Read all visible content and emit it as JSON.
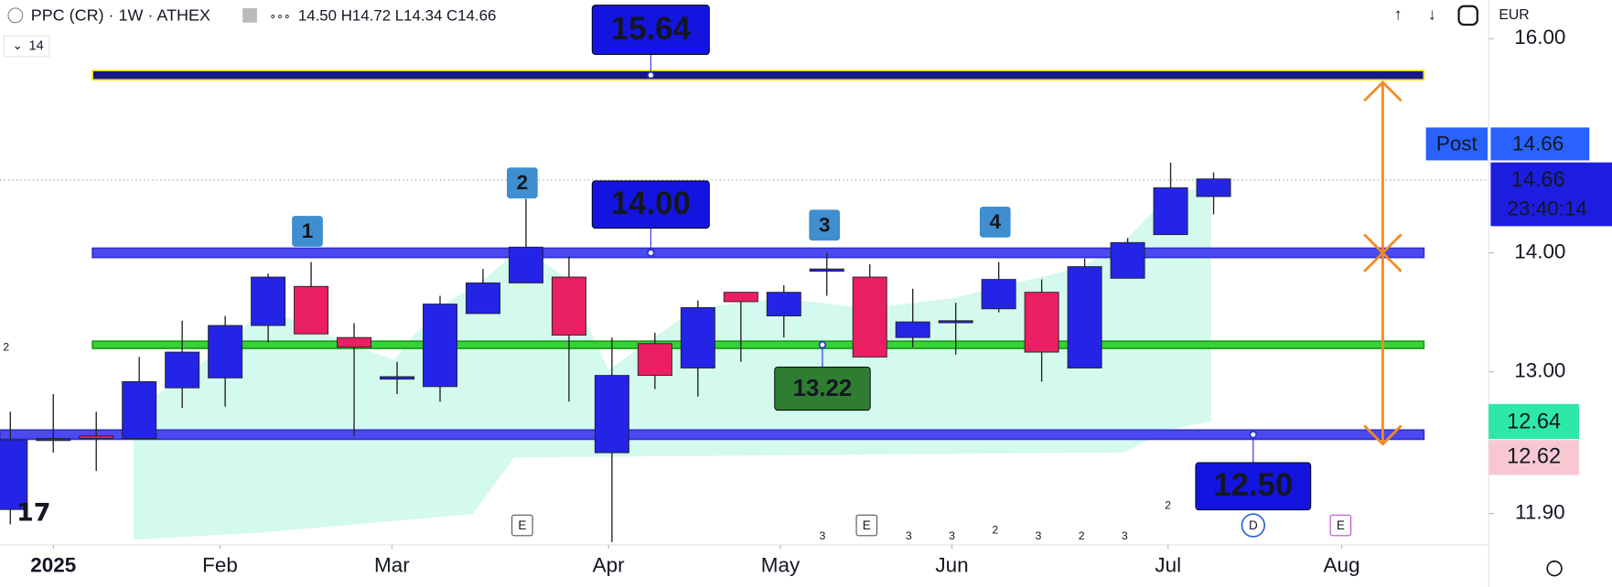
{
  "header": {
    "symbol": "PPC (CR) · 1W · ATHEX",
    "ohlc": "14.50 H14.72 L14.34 C14.66",
    "indicator": "14",
    "currency": "EUR"
  },
  "chart_data": {
    "type": "candlestick",
    "ylog": true,
    "ylim": [
      11.67,
      16.39
    ],
    "xlim": [
      -0.24,
      34.4
    ],
    "yticks": [
      {
        "value": 16,
        "label": "16.00"
      },
      {
        "value": 14,
        "label": "14.00"
      },
      {
        "value": 13,
        "label": "13.00"
      },
      {
        "value": 11.9,
        "label": "11.90"
      }
    ],
    "xticks": [
      {
        "value": 1,
        "label": "2025"
      },
      {
        "value": 4.88,
        "label": "Feb"
      },
      {
        "value": 8.88,
        "label": "Mar"
      },
      {
        "value": 13.92,
        "label": "Apr"
      },
      {
        "value": 17.92,
        "label": "May"
      },
      {
        "value": 21.91,
        "label": "Jun"
      },
      {
        "value": 26.94,
        "label": "Jul"
      },
      {
        "value": 30.98,
        "label": "Aug"
      }
    ],
    "up_color": "#2424e6",
    "down_color": "#e91e63",
    "open": [
      11.93,
      12.46,
      12.49,
      12.47,
      12.87,
      12.95,
      13.38,
      13.71,
      13.28,
      12.94,
      12.88,
      13.48,
      13.74,
      13.79,
      12.36,
      13.23,
      13.03,
      13.66,
      13.46,
      13.84,
      13.79,
      13.28,
      13.41,
      13.52,
      13.66,
      13.03,
      13.78,
      14.16,
      14.5
    ],
    "high": [
      12.68,
      12.82,
      12.68,
      13.12,
      13.42,
      13.46,
      13.82,
      13.92,
      13.4,
      13.08,
      13.63,
      13.86,
      14.48,
      13.97,
      13.28,
      13.32,
      13.59,
      13.66,
      13.72,
      14.0,
      13.9,
      13.69,
      13.57,
      13.92,
      13.77,
      13.95,
      14.13,
      14.81,
      14.72
    ],
    "low": [
      11.82,
      12.36,
      12.22,
      12.47,
      12.71,
      12.72,
      13.24,
      13.31,
      12.49,
      12.82,
      12.76,
      13.48,
      13.74,
      12.76,
      11.69,
      12.86,
      12.8,
      13.08,
      13.28,
      13.63,
      13.12,
      13.2,
      13.14,
      13.49,
      12.92,
      13.03,
      13.78,
      14.16,
      14.34
    ],
    "close": [
      12.46,
      12.47,
      12.47,
      12.92,
      13.16,
      13.38,
      13.79,
      13.31,
      13.2,
      12.96,
      13.56,
      13.74,
      14.05,
      13.3,
      12.97,
      12.97,
      13.53,
      13.58,
      13.66,
      13.86,
      13.12,
      13.41,
      13.42,
      13.77,
      13.16,
      13.88,
      14.09,
      14.58,
      14.66
    ],
    "levels": [
      {
        "value": 15.64,
        "label": "15.64"
      },
      {
        "value": 14,
        "label": "14.00"
      },
      {
        "value": 13.22,
        "label": "13.22"
      },
      {
        "value": 12.5,
        "label": "12.50"
      }
    ],
    "wave_labels": [
      "1",
      "2",
      "3",
      "4"
    ],
    "price_labels": {
      "post_tag": "Post",
      "post": "14.66",
      "last": "14.66",
      "countdown": "23:40:14",
      "upper": "12.64",
      "lower": "12.62"
    },
    "events": [
      "E",
      "E",
      "D",
      "E"
    ],
    "minor_labels": [
      "2",
      "3",
      "3",
      "3",
      "2",
      "3",
      "2",
      "3",
      "2"
    ]
  }
}
